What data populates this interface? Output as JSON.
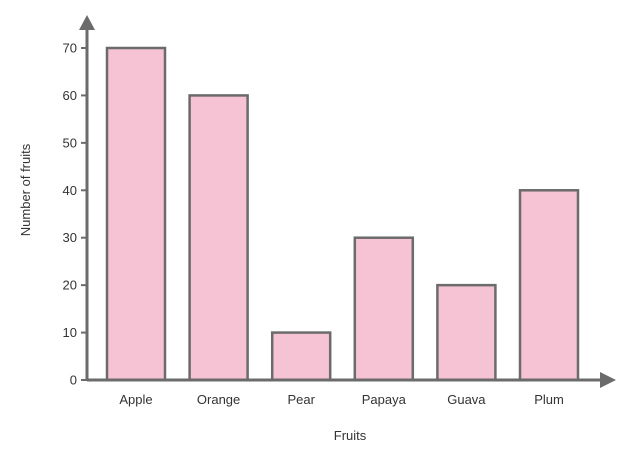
{
  "chart_data": {
    "type": "bar",
    "categories": [
      "Apple",
      "Orange",
      "Pear",
      "Papaya",
      "Guava",
      "Plum"
    ],
    "values": [
      70,
      60,
      10,
      30,
      20,
      40
    ],
    "xlabel": "Fruits",
    "ylabel": "Number of fruits",
    "ylim": [
      0,
      70
    ],
    "yticks": [
      0,
      10,
      20,
      30,
      40,
      50,
      60,
      70
    ],
    "grid": false,
    "colors": {
      "bar_fill": "#f5c3d3",
      "bar_stroke": "#6b6b6b",
      "axis": "#6b6b6b",
      "text": "#333333"
    }
  }
}
